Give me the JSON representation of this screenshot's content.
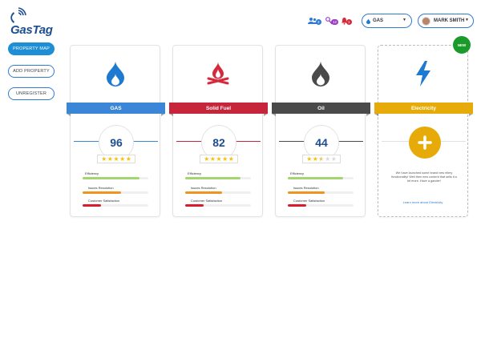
{
  "app": {
    "logo_text": "GasTag"
  },
  "header": {
    "notifications": [
      {
        "icon": "users-icon",
        "count": "3",
        "color": "#2e7bd0"
      },
      {
        "icon": "key-icon",
        "count": "12",
        "color": "#9b3cc4"
      },
      {
        "icon": "bell-icon",
        "count": "1",
        "color": "#d62a3c"
      }
    ],
    "fuel_select": {
      "value": "GAS"
    },
    "user": {
      "name": "MARK SMITH"
    }
  },
  "sidebar": {
    "buttons": [
      {
        "label": "PROPERTY MAP",
        "active": true
      },
      {
        "label": "ADD PROPERTY",
        "active": false
      },
      {
        "label": "UNREGISTER",
        "active": false
      }
    ]
  },
  "metric_labels": {
    "efficiency": "Efficiency",
    "issues": "Issues Resolution",
    "satisfaction": "Customer Satisfaction"
  },
  "cards": [
    {
      "title": "GAS",
      "icon": "gas-flame-icon",
      "color": "#3b86d6",
      "score": "96",
      "stars": 5,
      "metrics": {
        "efficiency": 0.86,
        "issues": 0.58,
        "satisfaction": 0.28
      }
    },
    {
      "title": "Solid Fuel",
      "icon": "campfire-icon",
      "color": "#c7263a",
      "score": "82",
      "stars": 5,
      "metrics": {
        "efficiency": 0.84,
        "issues": 0.56,
        "satisfaction": 0.28
      }
    },
    {
      "title": "Oil",
      "icon": "oil-drop-icon",
      "color": "#4a4a4a",
      "score": "44",
      "stars": 2.5,
      "metrics": {
        "efficiency": 0.84,
        "issues": 0.56,
        "satisfaction": 0.28
      }
    }
  ],
  "electricity": {
    "title": "Electricity",
    "icon": "lightning-bolt-icon",
    "color": "#e6ab08",
    "new_badge": "NEW",
    "message": "We have launched some brand new ellery functionality! Well then new content that sells it a bit more. Have a gander!",
    "link": "Learn more about Electricity"
  },
  "colors": {
    "bar_efficiency": "#a3d66e",
    "bar_issues": "#f0941f",
    "bar_satisfaction": "#d81e2c",
    "brand_blue": "#1e8fd4"
  }
}
